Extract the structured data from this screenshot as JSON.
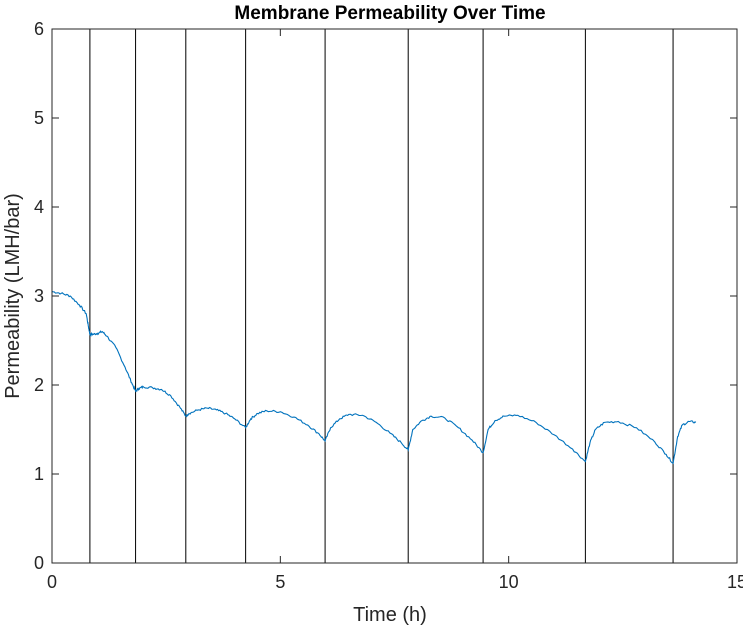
{
  "chart_data": {
    "type": "line",
    "title": "Membrane Permeability Over Time",
    "xlabel": "Time (h)",
    "ylabel": "Permeability (LMH/bar)",
    "xlim": [
      0,
      15
    ],
    "ylim": [
      0,
      6
    ],
    "xticks": [
      0,
      5,
      10,
      15
    ],
    "yticks": [
      0,
      1,
      2,
      3,
      4,
      5,
      6
    ],
    "grid": false,
    "vertical_lines_x": [
      0.83,
      1.83,
      2.93,
      4.24,
      5.98,
      7.8,
      9.44,
      11.68,
      13.6
    ],
    "series": [
      {
        "color": "#0072BD",
        "points": [
          [
            0.0,
            3.05
          ],
          [
            0.2,
            3.03
          ],
          [
            0.4,
            3.0
          ],
          [
            0.6,
            2.9
          ],
          [
            0.75,
            2.8
          ],
          [
            0.8,
            2.65
          ],
          [
            0.83,
            2.57
          ],
          [
            0.9,
            2.57
          ],
          [
            1.0,
            2.58
          ],
          [
            1.1,
            2.6
          ],
          [
            1.2,
            2.55
          ],
          [
            1.4,
            2.42
          ],
          [
            1.6,
            2.2
          ],
          [
            1.75,
            2.02
          ],
          [
            1.83,
            1.93
          ],
          [
            1.9,
            1.96
          ],
          [
            2.0,
            1.98
          ],
          [
            2.2,
            1.97
          ],
          [
            2.4,
            1.95
          ],
          [
            2.6,
            1.88
          ],
          [
            2.8,
            1.75
          ],
          [
            2.93,
            1.65
          ],
          [
            3.0,
            1.68
          ],
          [
            3.2,
            1.72
          ],
          [
            3.4,
            1.74
          ],
          [
            3.6,
            1.72
          ],
          [
            3.8,
            1.68
          ],
          [
            4.0,
            1.62
          ],
          [
            4.24,
            1.52
          ],
          [
            4.35,
            1.62
          ],
          [
            4.5,
            1.68
          ],
          [
            4.7,
            1.71
          ],
          [
            5.0,
            1.7
          ],
          [
            5.3,
            1.64
          ],
          [
            5.6,
            1.55
          ],
          [
            5.85,
            1.45
          ],
          [
            5.98,
            1.37
          ],
          [
            6.1,
            1.52
          ],
          [
            6.3,
            1.62
          ],
          [
            6.5,
            1.67
          ],
          [
            6.8,
            1.66
          ],
          [
            7.1,
            1.58
          ],
          [
            7.4,
            1.46
          ],
          [
            7.65,
            1.35
          ],
          [
            7.8,
            1.27
          ],
          [
            7.9,
            1.5
          ],
          [
            8.1,
            1.6
          ],
          [
            8.3,
            1.65
          ],
          [
            8.6,
            1.63
          ],
          [
            8.9,
            1.52
          ],
          [
            9.2,
            1.38
          ],
          [
            9.44,
            1.24
          ],
          [
            9.55,
            1.5
          ],
          [
            9.7,
            1.6
          ],
          [
            9.9,
            1.65
          ],
          [
            10.2,
            1.66
          ],
          [
            10.6,
            1.58
          ],
          [
            11.0,
            1.44
          ],
          [
            11.4,
            1.28
          ],
          [
            11.68,
            1.14
          ],
          [
            11.78,
            1.35
          ],
          [
            11.9,
            1.5
          ],
          [
            12.1,
            1.58
          ],
          [
            12.4,
            1.59
          ],
          [
            12.8,
            1.52
          ],
          [
            13.2,
            1.36
          ],
          [
            13.45,
            1.22
          ],
          [
            13.6,
            1.12
          ],
          [
            13.7,
            1.42
          ],
          [
            13.8,
            1.55
          ],
          [
            13.95,
            1.59
          ],
          [
            14.1,
            1.58
          ]
        ]
      }
    ]
  }
}
